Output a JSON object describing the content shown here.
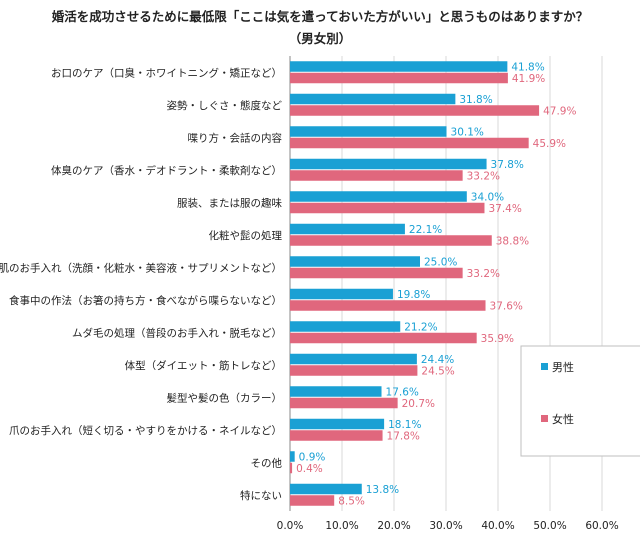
{
  "title_line1": "婚活を成功させるために最低限「ここは気を遣っておいた方がいい」と思うものはありますか？",
  "title_line2": "（男女別）",
  "chart_data": {
    "type": "bar",
    "orientation": "horizontal",
    "categories": [
      "お口のケア（口臭・ホワイトニング・矯正など）",
      "姿勢・しぐさ・態度など",
      "喋り方・会話の内容",
      "体臭のケア（香水・デオドラント・柔軟剤など）",
      "服装、または服の趣味",
      "化粧や髭の処理",
      "肌のお手入れ（洗顔・化粧水・美容液・サプリメントなど）",
      "食事中の作法（お箸の持ち方・食べながら喋らないなど）",
      "ムダ毛の処理（普段のお手入れ・脱毛など）",
      "体型（ダイエット・筋トレなど）",
      "髪型や髪の色（カラー）",
      "爪のお手入れ（短く切る・やすりをかける・ネイルなど）",
      "その他",
      "特にない"
    ],
    "series": [
      {
        "name": "男性",
        "color": "#1aa0d4",
        "values": [
          41.8,
          31.8,
          30.1,
          37.8,
          34.0,
          22.1,
          25.0,
          19.8,
          21.2,
          24.4,
          17.6,
          18.1,
          0.9,
          13.8
        ],
        "labels": [
          "41.8%",
          "31.8%",
          "30.1%",
          "37.8%",
          "34.0%",
          "22.1%",
          "25.0%",
          "19.8%",
          "21.2%",
          "24.4%",
          "17.6%",
          "18.1%",
          "0.9%",
          "13.8%"
        ]
      },
      {
        "name": "女性",
        "color": "#e0677d",
        "values": [
          41.9,
          47.9,
          45.9,
          33.2,
          37.4,
          38.8,
          33.2,
          37.6,
          35.9,
          24.5,
          20.7,
          17.8,
          0.4,
          8.5
        ],
        "labels": [
          "41.9%",
          "47.9%",
          "45.9%",
          "33.2%",
          "37.4%",
          "38.8%",
          "33.2%",
          "37.6%",
          "35.9%",
          "24.5%",
          "20.7%",
          "17.8%",
          "0.4%",
          "8.5%"
        ]
      }
    ],
    "xlim": [
      0,
      60
    ],
    "xticks": [
      0,
      10,
      20,
      30,
      40,
      50,
      60
    ],
    "xtick_labels": [
      "0.0%",
      "10.0%",
      "20.0%",
      "30.0%",
      "40.0%",
      "50.0%",
      "60.0%"
    ],
    "grid": true,
    "legend": "right"
  }
}
